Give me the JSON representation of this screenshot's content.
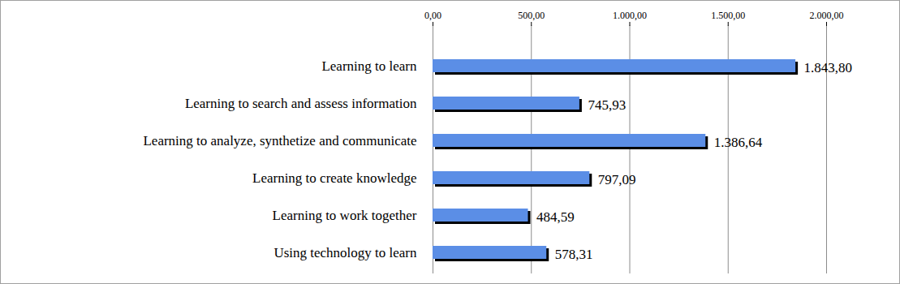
{
  "chart_data": {
    "type": "bar",
    "orientation": "horizontal",
    "categories": [
      "Learning to learn",
      "Learning to search and assess information",
      "Learning to analyze, synthetize and communicate",
      "Learning to create knowledge",
      "Learning to work together",
      "Using technology to learn"
    ],
    "values": [
      1843.8,
      745.93,
      1386.64,
      797.09,
      484.59,
      578.31
    ],
    "value_labels": [
      "1.843,80",
      "745,93",
      "1.386,64",
      "797,09",
      "484,59",
      "578,31"
    ],
    "color": "#5b8ee6",
    "xlim": [
      0,
      2000
    ],
    "xticks": [
      {
        "value": 0,
        "label": "0,00"
      },
      {
        "value": 500,
        "label": "500,00"
      },
      {
        "value": 1000,
        "label": "1.000,00"
      },
      {
        "value": 1500,
        "label": "1.500,00"
      },
      {
        "value": 2000,
        "label": "2.000,00"
      }
    ],
    "grid": true,
    "data_labels": true
  }
}
